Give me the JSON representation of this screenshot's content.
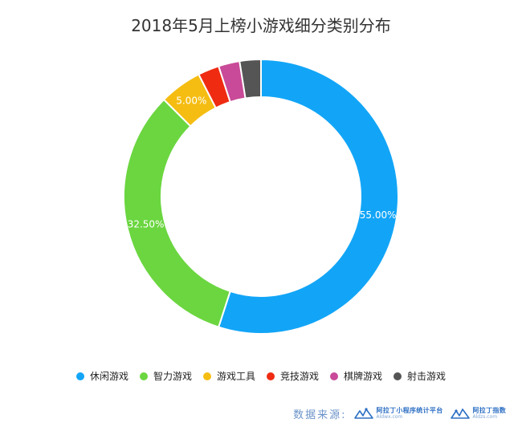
{
  "chart_data": {
    "type": "pie",
    "title": "2018年5月上榜小游戏细分类别分布",
    "style": "donut",
    "categories": [
      "休闲游戏",
      "智力游戏",
      "游戏工具",
      "竞技游戏",
      "棋牌游戏",
      "射击游戏"
    ],
    "values": [
      55.0,
      32.5,
      5.0,
      2.5,
      2.5,
      2.5
    ],
    "data_labels": [
      "55.00%",
      "32.50%",
      "5.00%",
      "",
      "",
      ""
    ],
    "colors": [
      "#12a5f7",
      "#6bd640",
      "#f5bd12",
      "#ef2b12",
      "#c94a98",
      "#555555"
    ],
    "legend_position": "bottom",
    "start_angle": "top, clockwise"
  },
  "source": {
    "label": "数据来源:",
    "brands": [
      {
        "name": "阿拉丁小程序统计平台",
        "domain": "Aldwx.com"
      },
      {
        "name": "阿拉丁指数",
        "domain": "Aldzs.com"
      }
    ]
  }
}
